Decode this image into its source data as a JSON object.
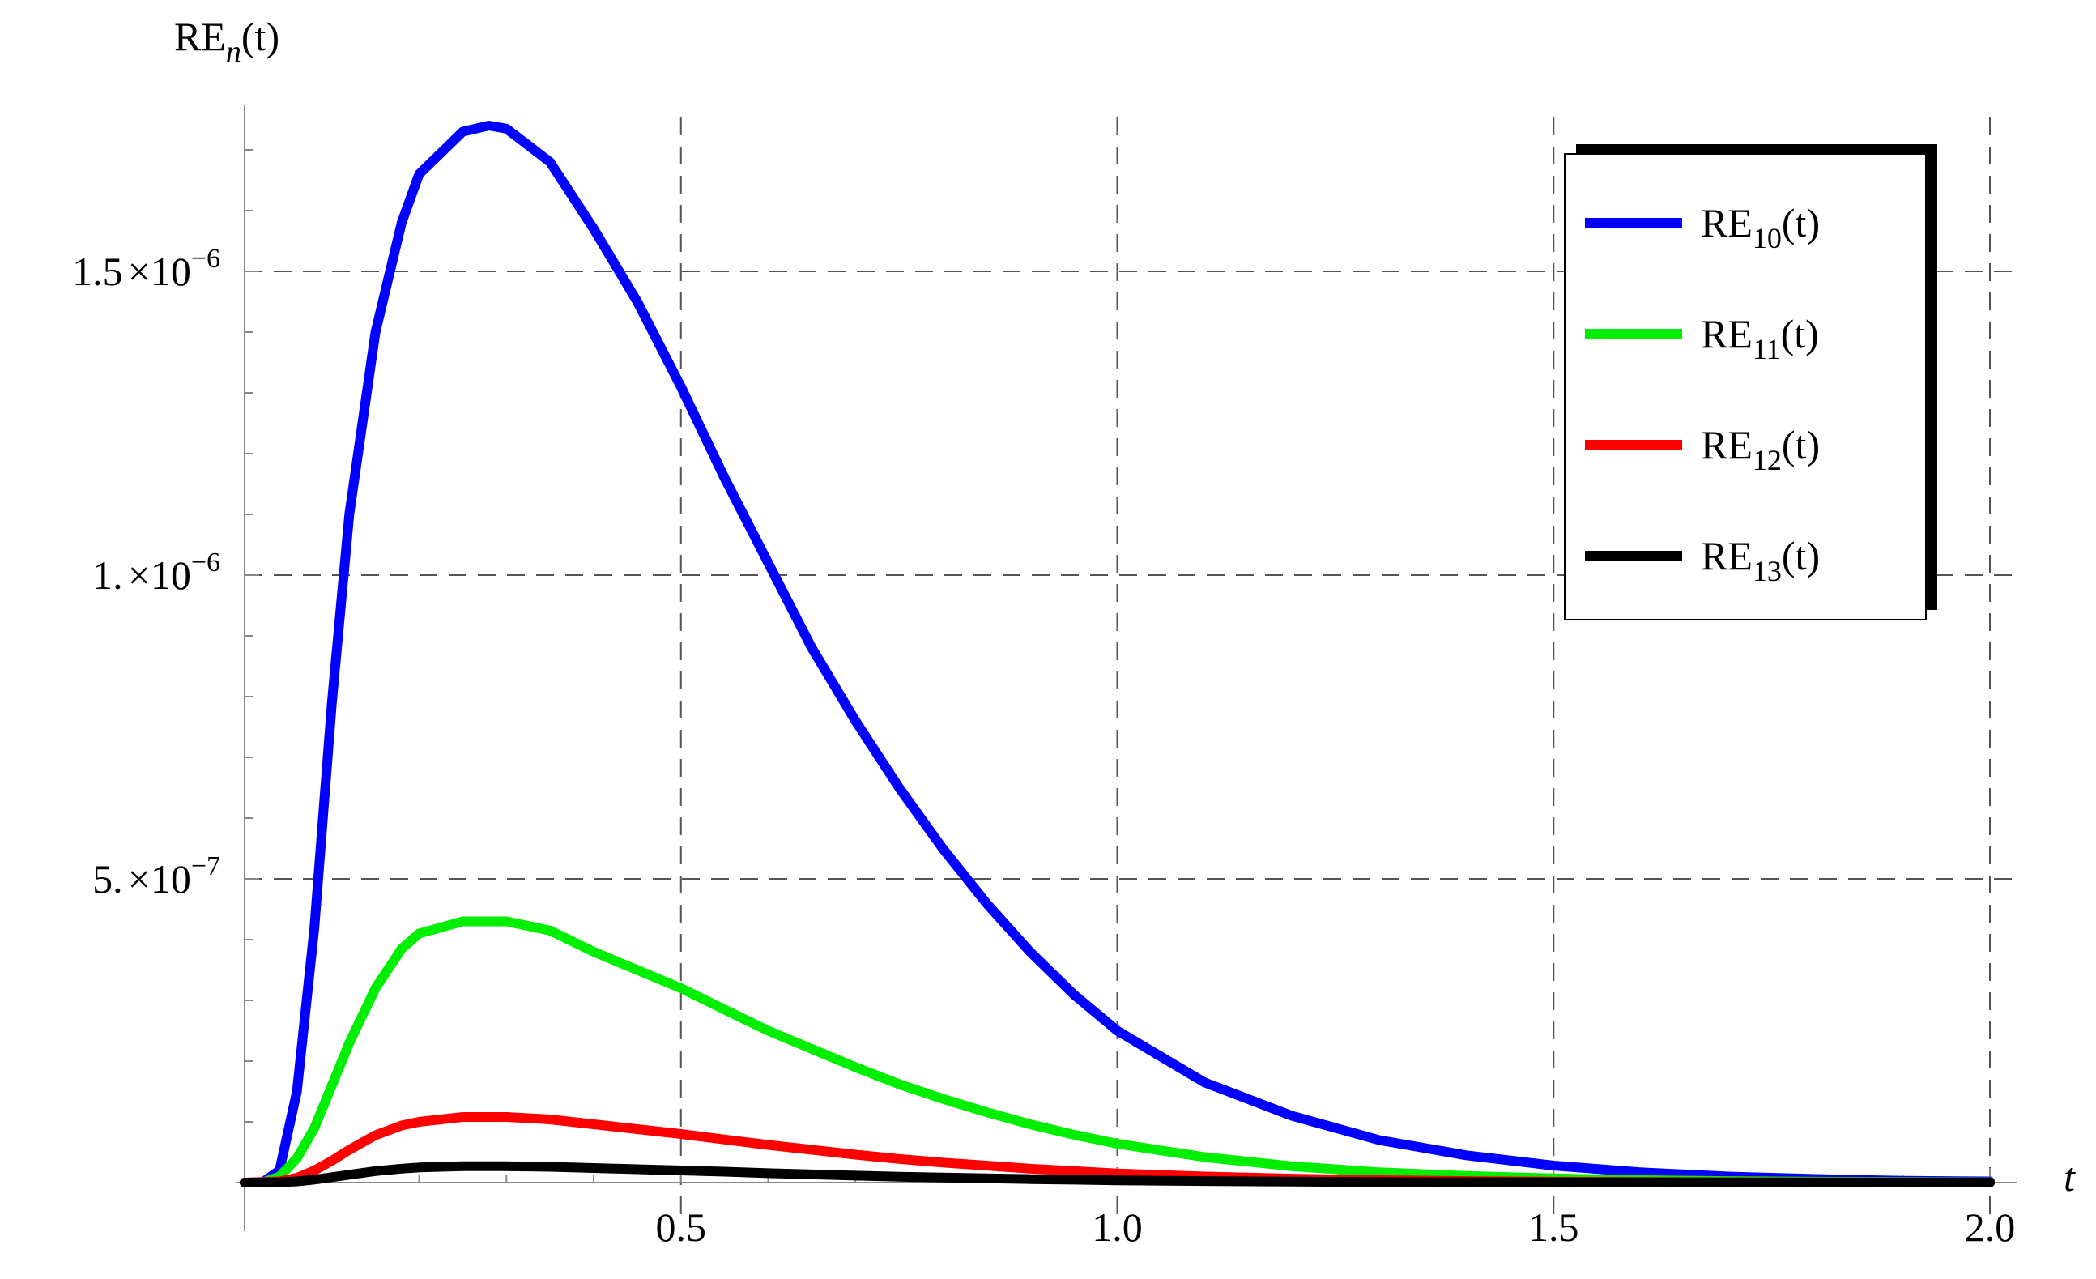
{
  "chart_data": {
    "type": "line",
    "xlabel": "t",
    "ylabel": {
      "base": "RE",
      "sub": "n",
      "suffix": "(t)"
    },
    "xlim": [
      0,
      2.05
    ],
    "ylim": [
      0,
      1.8e-06
    ],
    "x_ticks": [
      {
        "value": 0.5,
        "label": "0.5"
      },
      {
        "value": 1.0,
        "label": "1.0"
      },
      {
        "value": 1.5,
        "label": "1.5"
      },
      {
        "value": 2.0,
        "label": "2.0"
      }
    ],
    "y_ticks": [
      {
        "value": 5e-07,
        "mantissa": "5.",
        "times": "×",
        "base": "10",
        "exp": "−7"
      },
      {
        "value": 1e-06,
        "mantissa": "1.",
        "times": "×",
        "base": "10",
        "exp": "−6"
      },
      {
        "value": 1.5e-06,
        "mantissa": "1.5",
        "times": "×",
        "base": "10",
        "exp": "−6"
      }
    ],
    "grid": true,
    "legend_position": "top-right",
    "series": [
      {
        "name": "RE10(t)",
        "label_base": "RE",
        "label_sub": "10",
        "label_suffix": "(t)",
        "color": "#0000ff",
        "points": [
          [
            0,
            0
          ],
          [
            0.02,
            0.0
          ],
          [
            0.04,
            2e-08
          ],
          [
            0.06,
            1.5e-07
          ],
          [
            0.08,
            4.2e-07
          ],
          [
            0.1,
            7.9e-07
          ],
          [
            0.12,
            1.1e-06
          ],
          [
            0.15,
            1.4e-06
          ],
          [
            0.18,
            1.58e-06
          ],
          [
            0.2,
            1.66e-06
          ],
          [
            0.25,
            1.73e-06
          ],
          [
            0.28,
            1.74e-06
          ],
          [
            0.3,
            1.735e-06
          ],
          [
            0.35,
            1.68e-06
          ],
          [
            0.4,
            1.57e-06
          ],
          [
            0.45,
            1.45e-06
          ],
          [
            0.5,
            1.31e-06
          ],
          [
            0.55,
            1.16e-06
          ],
          [
            0.6,
            1.02e-06
          ],
          [
            0.65,
            8.8e-07
          ],
          [
            0.7,
            7.6e-07
          ],
          [
            0.75,
            6.5e-07
          ],
          [
            0.8,
            5.5e-07
          ],
          [
            0.85,
            4.6e-07
          ],
          [
            0.9,
            3.8e-07
          ],
          [
            0.95,
            3.1e-07
          ],
          [
            1.0,
            2.5e-07
          ],
          [
            1.1,
            1.65e-07
          ],
          [
            1.2,
            1.1e-07
          ],
          [
            1.3,
            7e-08
          ],
          [
            1.4,
            4.5e-08
          ],
          [
            1.5,
            2.8e-08
          ],
          [
            1.6,
            1.7e-08
          ],
          [
            1.7,
            1e-08
          ],
          [
            1.8,
            6e-09
          ],
          [
            1.9,
            3e-09
          ],
          [
            2.0,
            2e-09
          ]
        ]
      },
      {
        "name": "RE11(t)",
        "label_base": "RE",
        "label_sub": "11",
        "label_suffix": "(t)",
        "color": "#00ee00",
        "points": [
          [
            0,
            0
          ],
          [
            0.02,
            0.0
          ],
          [
            0.04,
            1e-08
          ],
          [
            0.06,
            4e-08
          ],
          [
            0.08,
            9e-08
          ],
          [
            0.1,
            1.6e-07
          ],
          [
            0.12,
            2.3e-07
          ],
          [
            0.15,
            3.2e-07
          ],
          [
            0.18,
            3.85e-07
          ],
          [
            0.2,
            4.1e-07
          ],
          [
            0.25,
            4.3e-07
          ],
          [
            0.3,
            4.3e-07
          ],
          [
            0.35,
            4.15e-07
          ],
          [
            0.4,
            3.8e-07
          ],
          [
            0.45,
            3.5e-07
          ],
          [
            0.5,
            3.2e-07
          ],
          [
            0.55,
            2.85e-07
          ],
          [
            0.6,
            2.5e-07
          ],
          [
            0.65,
            2.2e-07
          ],
          [
            0.7,
            1.9e-07
          ],
          [
            0.75,
            1.62e-07
          ],
          [
            0.8,
            1.38e-07
          ],
          [
            0.85,
            1.16e-07
          ],
          [
            0.9,
            9.6e-08
          ],
          [
            0.95,
            7.9e-08
          ],
          [
            1.0,
            6.4e-08
          ],
          [
            1.1,
            4.2e-08
          ],
          [
            1.2,
            2.7e-08
          ],
          [
            1.3,
            1.7e-08
          ],
          [
            1.4,
            1.1e-08
          ],
          [
            1.5,
            7e-09
          ],
          [
            1.6,
            4e-09
          ],
          [
            1.7,
            2.5e-09
          ],
          [
            1.8,
            1.5e-09
          ],
          [
            1.9,
            1e-09
          ],
          [
            2.0,
            5e-10
          ]
        ]
      },
      {
        "name": "RE12(t)",
        "label_base": "RE",
        "label_sub": "12",
        "label_suffix": "(t)",
        "color": "#ff0000",
        "points": [
          [
            0,
            0
          ],
          [
            0.04,
            2e-09
          ],
          [
            0.06,
            8e-09
          ],
          [
            0.08,
            2e-08
          ],
          [
            0.1,
            3.6e-08
          ],
          [
            0.12,
            5.4e-08
          ],
          [
            0.15,
            7.8e-08
          ],
          [
            0.18,
            9.4e-08
          ],
          [
            0.2,
            1e-07
          ],
          [
            0.25,
            1.08e-07
          ],
          [
            0.3,
            1.08e-07
          ],
          [
            0.35,
            1.04e-07
          ],
          [
            0.4,
            9.6e-08
          ],
          [
            0.45,
            8.8e-08
          ],
          [
            0.5,
            8e-08
          ],
          [
            0.55,
            7.1e-08
          ],
          [
            0.6,
            6.2e-08
          ],
          [
            0.65,
            5.4e-08
          ],
          [
            0.7,
            4.6e-08
          ],
          [
            0.75,
            3.9e-08
          ],
          [
            0.8,
            3.3e-08
          ],
          [
            0.85,
            2.8e-08
          ],
          [
            0.9,
            2.3e-08
          ],
          [
            0.95,
            1.9e-08
          ],
          [
            1.0,
            1.5e-08
          ],
          [
            1.1,
            1e-08
          ],
          [
            1.2,
            6.5e-09
          ],
          [
            1.3,
            4e-09
          ],
          [
            1.4,
            2.5e-09
          ],
          [
            1.5,
            1.5e-09
          ],
          [
            1.7,
            6e-10
          ],
          [
            2.0,
            1e-10
          ]
        ]
      },
      {
        "name": "RE13(t)",
        "label_base": "RE",
        "label_sub": "13",
        "label_suffix": "(t)",
        "color": "#000000",
        "points": [
          [
            0,
            0
          ],
          [
            0.04,
            5e-10
          ],
          [
            0.06,
            2e-09
          ],
          [
            0.08,
            5e-09
          ],
          [
            0.1,
            9e-09
          ],
          [
            0.12,
            1.3e-08
          ],
          [
            0.15,
            1.9e-08
          ],
          [
            0.18,
            2.3e-08
          ],
          [
            0.2,
            2.5e-08
          ],
          [
            0.25,
            2.7e-08
          ],
          [
            0.3,
            2.7e-08
          ],
          [
            0.35,
            2.6e-08
          ],
          [
            0.4,
            2.4e-08
          ],
          [
            0.45,
            2.2e-08
          ],
          [
            0.5,
            2e-08
          ],
          [
            0.55,
            1.8e-08
          ],
          [
            0.6,
            1.55e-08
          ],
          [
            0.65,
            1.35e-08
          ],
          [
            0.7,
            1.15e-08
          ],
          [
            0.75,
            9.7e-09
          ],
          [
            0.8,
            8.2e-09
          ],
          [
            0.85,
            7e-09
          ],
          [
            0.9,
            5.8e-09
          ],
          [
            0.95,
            4.8e-09
          ],
          [
            1.0,
            3.8e-09
          ],
          [
            1.1,
            2.5e-09
          ],
          [
            1.2,
            1.6e-09
          ],
          [
            1.3,
            1e-09
          ],
          [
            1.5,
            4e-10
          ],
          [
            1.7,
            1.5e-10
          ],
          [
            2.0,
            2e-11
          ]
        ]
      }
    ]
  }
}
